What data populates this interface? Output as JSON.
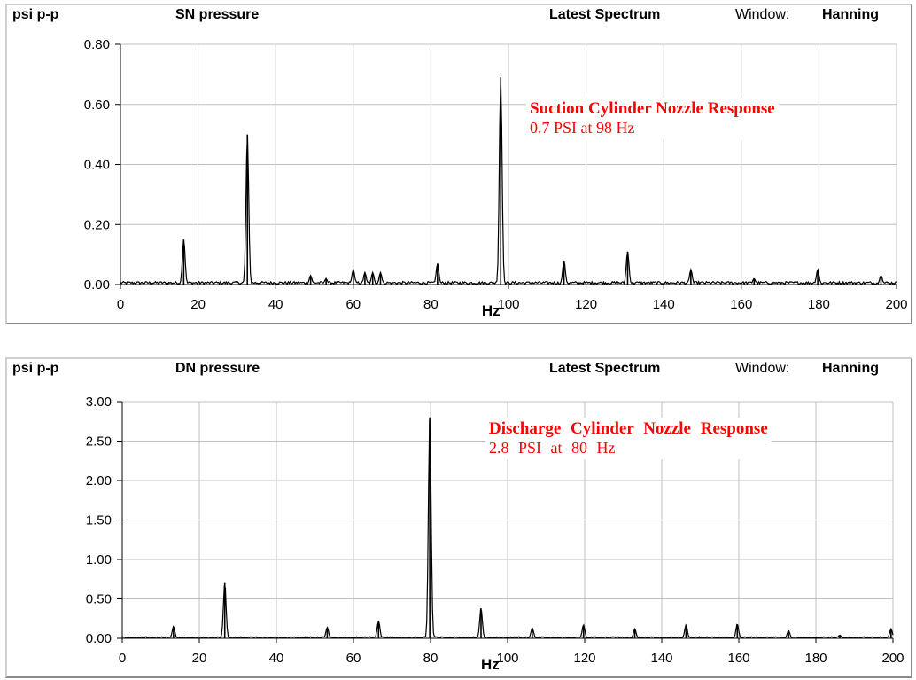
{
  "charts": [
    {
      "unit_label": "psi p-p",
      "pressure_name": "SN pressure",
      "spectrum_label": "Latest Spectrum",
      "window_label": "Window:",
      "window_value": "Hanning",
      "annotation_title": "Suction Cylinder Nozzle Response",
      "annotation_sub": "0.7 PSI at 98 Hz",
      "xlabel": "Hz",
      "accent_color": "#ff0000"
    },
    {
      "unit_label": "psi p-p",
      "pressure_name": "DN pressure",
      "spectrum_label": "Latest Spectrum",
      "window_label": "Window:",
      "window_value": "Hanning",
      "annotation_title": "Discharge Cylinder Nozzle Response",
      "annotation_sub": "2.8 PSI at 80 Hz",
      "xlabel": "Hz",
      "accent_color": "#ff0000"
    }
  ],
  "chart_data": [
    {
      "type": "line",
      "title": "SN pressure",
      "xlabel": "Hz",
      "ylabel": "psi p-p",
      "xlim": [
        0,
        200
      ],
      "ylim": [
        0,
        0.8
      ],
      "x_ticks": [
        0,
        20,
        40,
        60,
        80,
        100,
        120,
        140,
        160,
        180,
        200
      ],
      "y_ticks": [
        0,
        0.2,
        0.4,
        0.6,
        0.8
      ],
      "y_tick_labels": [
        "0.00",
        "0.20",
        "0.40",
        "0.60",
        "0.80"
      ],
      "grid": true,
      "baseline": 0.005,
      "peaks": [
        {
          "x": 16.3,
          "y": 0.15
        },
        {
          "x": 32.7,
          "y": 0.5
        },
        {
          "x": 49,
          "y": 0.03
        },
        {
          "x": 53,
          "y": 0.02
        },
        {
          "x": 60,
          "y": 0.05
        },
        {
          "x": 63,
          "y": 0.04
        },
        {
          "x": 65,
          "y": 0.04
        },
        {
          "x": 67,
          "y": 0.04
        },
        {
          "x": 81.7,
          "y": 0.07
        },
        {
          "x": 98,
          "y": 0.69
        },
        {
          "x": 114.3,
          "y": 0.08
        },
        {
          "x": 130.7,
          "y": 0.11
        },
        {
          "x": 147,
          "y": 0.05
        },
        {
          "x": 163.3,
          "y": 0.02
        },
        {
          "x": 179.7,
          "y": 0.05
        },
        {
          "x": 196,
          "y": 0.03
        }
      ]
    },
    {
      "type": "line",
      "title": "DN pressure",
      "xlabel": "Hz",
      "ylabel": "psi p-p",
      "xlim": [
        0,
        200
      ],
      "ylim": [
        0,
        3
      ],
      "x_ticks": [
        0,
        20,
        40,
        60,
        80,
        100,
        120,
        140,
        160,
        180,
        200
      ],
      "y_ticks": [
        0,
        0.5,
        1,
        1.5,
        2,
        2.5,
        3
      ],
      "y_tick_labels": [
        "0.00",
        "0.50",
        "1.00",
        "1.50",
        "2.00",
        "2.50",
        "3.00"
      ],
      "grid": true,
      "baseline": 0.01,
      "peaks": [
        {
          "x": 13.3,
          "y": 0.15
        },
        {
          "x": 26.6,
          "y": 0.7
        },
        {
          "x": 53.2,
          "y": 0.14
        },
        {
          "x": 66.5,
          "y": 0.22
        },
        {
          "x": 79.8,
          "y": 2.8
        },
        {
          "x": 93.1,
          "y": 0.38
        },
        {
          "x": 106.4,
          "y": 0.13
        },
        {
          "x": 119.7,
          "y": 0.17
        },
        {
          "x": 133,
          "y": 0.12
        },
        {
          "x": 146.3,
          "y": 0.17
        },
        {
          "x": 159.6,
          "y": 0.18
        },
        {
          "x": 172.9,
          "y": 0.1
        },
        {
          "x": 186.2,
          "y": 0.04
        },
        {
          "x": 199.5,
          "y": 0.12
        }
      ]
    }
  ]
}
